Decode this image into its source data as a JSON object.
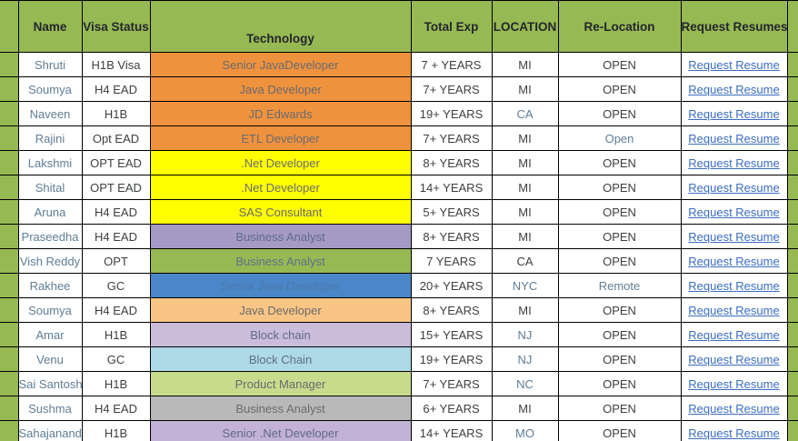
{
  "colors": {
    "header_bg": "#97B954",
    "accent_bg": "#97B954",
    "border": "#000000",
    "link": "#3B6DC1",
    "text_dark": "#3C3F42",
    "text_muted": "#5F7D96",
    "tech_text_default": "#6A6B6D"
  },
  "table": {
    "columns": [
      {
        "key": "name",
        "label": "Name"
      },
      {
        "key": "visa",
        "label": "Visa Status"
      },
      {
        "key": "tech",
        "label": "Technology",
        "bottom": true
      },
      {
        "key": "exp",
        "label": "Total Exp"
      },
      {
        "key": "location",
        "label": "LOCATION"
      },
      {
        "key": "relocation",
        "label": "Re-Location"
      },
      {
        "key": "request",
        "label": "Request Resumes"
      }
    ],
    "link_label": "Request Resume",
    "rows": [
      {
        "name": "Shruti",
        "visa": "H1B Visa",
        "tech": "Senior JavaDeveloper",
        "tech_bg": "#EF923E",
        "exp": "7 + YEARS",
        "location": "MI",
        "location_muted": false,
        "relocation": "OPEN",
        "relocation_muted": false
      },
      {
        "name": "Soumya",
        "visa": "H4 EAD",
        "tech": "Java Developer",
        "tech_bg": "#EF923E",
        "exp": "7+ YEARS",
        "location": "MI",
        "location_muted": false,
        "relocation": "OPEN",
        "relocation_muted": false
      },
      {
        "name": "Naveen",
        "visa": "H1B",
        "tech": "JD Edwards",
        "tech_bg": "#EF923E",
        "exp": "19+ YEARS",
        "location": "CA",
        "location_muted": true,
        "relocation": "OPEN",
        "relocation_muted": false
      },
      {
        "name": "Rajini",
        "visa": "Opt EAD",
        "tech": "ETL Developer",
        "tech_bg": "#EF923E",
        "exp": "7+ YEARS",
        "location": "MI",
        "location_muted": false,
        "relocation": "Open",
        "relocation_muted": true
      },
      {
        "name": "Lakshmi",
        "visa": "OPT EAD",
        "tech": ".Net Developer",
        "tech_bg": "#FFFF00",
        "exp": "8+ YEARS",
        "location": "MI",
        "location_muted": false,
        "relocation": "OPEN",
        "relocation_muted": false
      },
      {
        "name": "Shital",
        "visa": "OPT EAD",
        "tech": ".Net Developer",
        "tech_bg": "#FFFF00",
        "exp": "14+ YEARS",
        "location": "MI",
        "location_muted": false,
        "relocation": "OPEN",
        "relocation_muted": false
      },
      {
        "name": "Aruna",
        "visa": "H4 EAD",
        "tech": "SAS Consultant",
        "tech_bg": "#FFFF00",
        "exp": "5+ YEARS",
        "location": "MI",
        "location_muted": false,
        "relocation": "OPEN",
        "relocation_muted": false
      },
      {
        "name": "Praseedha",
        "visa": "H4 EAD",
        "tech": "Business Analyst",
        "tech_bg": "#A59AC6",
        "tech_color": "#5E6C86",
        "exp": "8+ YEARS",
        "location": "MI",
        "location_muted": false,
        "relocation": "OPEN",
        "relocation_muted": false
      },
      {
        "name": "Vish Reddy",
        "visa": "OPT",
        "tech": "Business Analyst",
        "tech_bg": "#97B954",
        "tech_color": "#5D7183",
        "exp": "7 YEARS",
        "location": "CA",
        "location_muted": false,
        "relocation": "OPEN",
        "relocation_muted": false
      },
      {
        "name": "Rakhee",
        "visa": "GC",
        "tech": "Senior Java Developer",
        "tech_bg": "#4A86C8",
        "tech_color": "#4D78AB",
        "exp": "20+ YEARS",
        "location": "NYC",
        "location_muted": true,
        "relocation": "Remote",
        "relocation_muted": true
      },
      {
        "name": "Soumya",
        "visa": "H4 EAD",
        "tech": "Java Developer",
        "tech_bg": "#F9C585",
        "exp": "8+ YEARS",
        "location": "MI",
        "location_muted": false,
        "relocation": "OPEN",
        "relocation_muted": false
      },
      {
        "name": "Amar",
        "visa": "H1B",
        "tech": "Block chain",
        "tech_bg": "#CBBCDC",
        "tech_color": "#5E6C86",
        "exp": "15+ YEARS",
        "location": "NJ",
        "location_muted": true,
        "relocation": "OPEN",
        "relocation_muted": false
      },
      {
        "name": "Venu",
        "visa": "GC",
        "tech": "Block Chain",
        "tech_bg": "#AED9E7",
        "tech_color": "#5E7086",
        "exp": "19+ YEARS",
        "location": "NJ",
        "location_muted": true,
        "relocation": "OPEN",
        "relocation_muted": false
      },
      {
        "name": "Sai Santosh",
        "visa": "H1B",
        "tech": "Product Manager",
        "tech_bg": "#C8DB8D",
        "exp": "7+ YEARS",
        "location": "NC",
        "location_muted": true,
        "relocation": "OPEN",
        "relocation_muted": false
      },
      {
        "name": "Sushma",
        "visa": "H4 EAD",
        "tech": "Business Analyst",
        "tech_bg": "#B9B9B9",
        "exp": "6+ YEARS",
        "location": "MI",
        "location_muted": false,
        "relocation": "OPEN",
        "relocation_muted": false
      },
      {
        "name": "Sahajanand",
        "visa": "H1B",
        "tech": "Senior .Net Developer",
        "tech_bg": "#C3B1D6",
        "tech_color": "#5E6C86",
        "exp": "14+ YEARS",
        "location": "MO",
        "location_muted": true,
        "relocation": "OPEN",
        "relocation_muted": false
      }
    ]
  }
}
